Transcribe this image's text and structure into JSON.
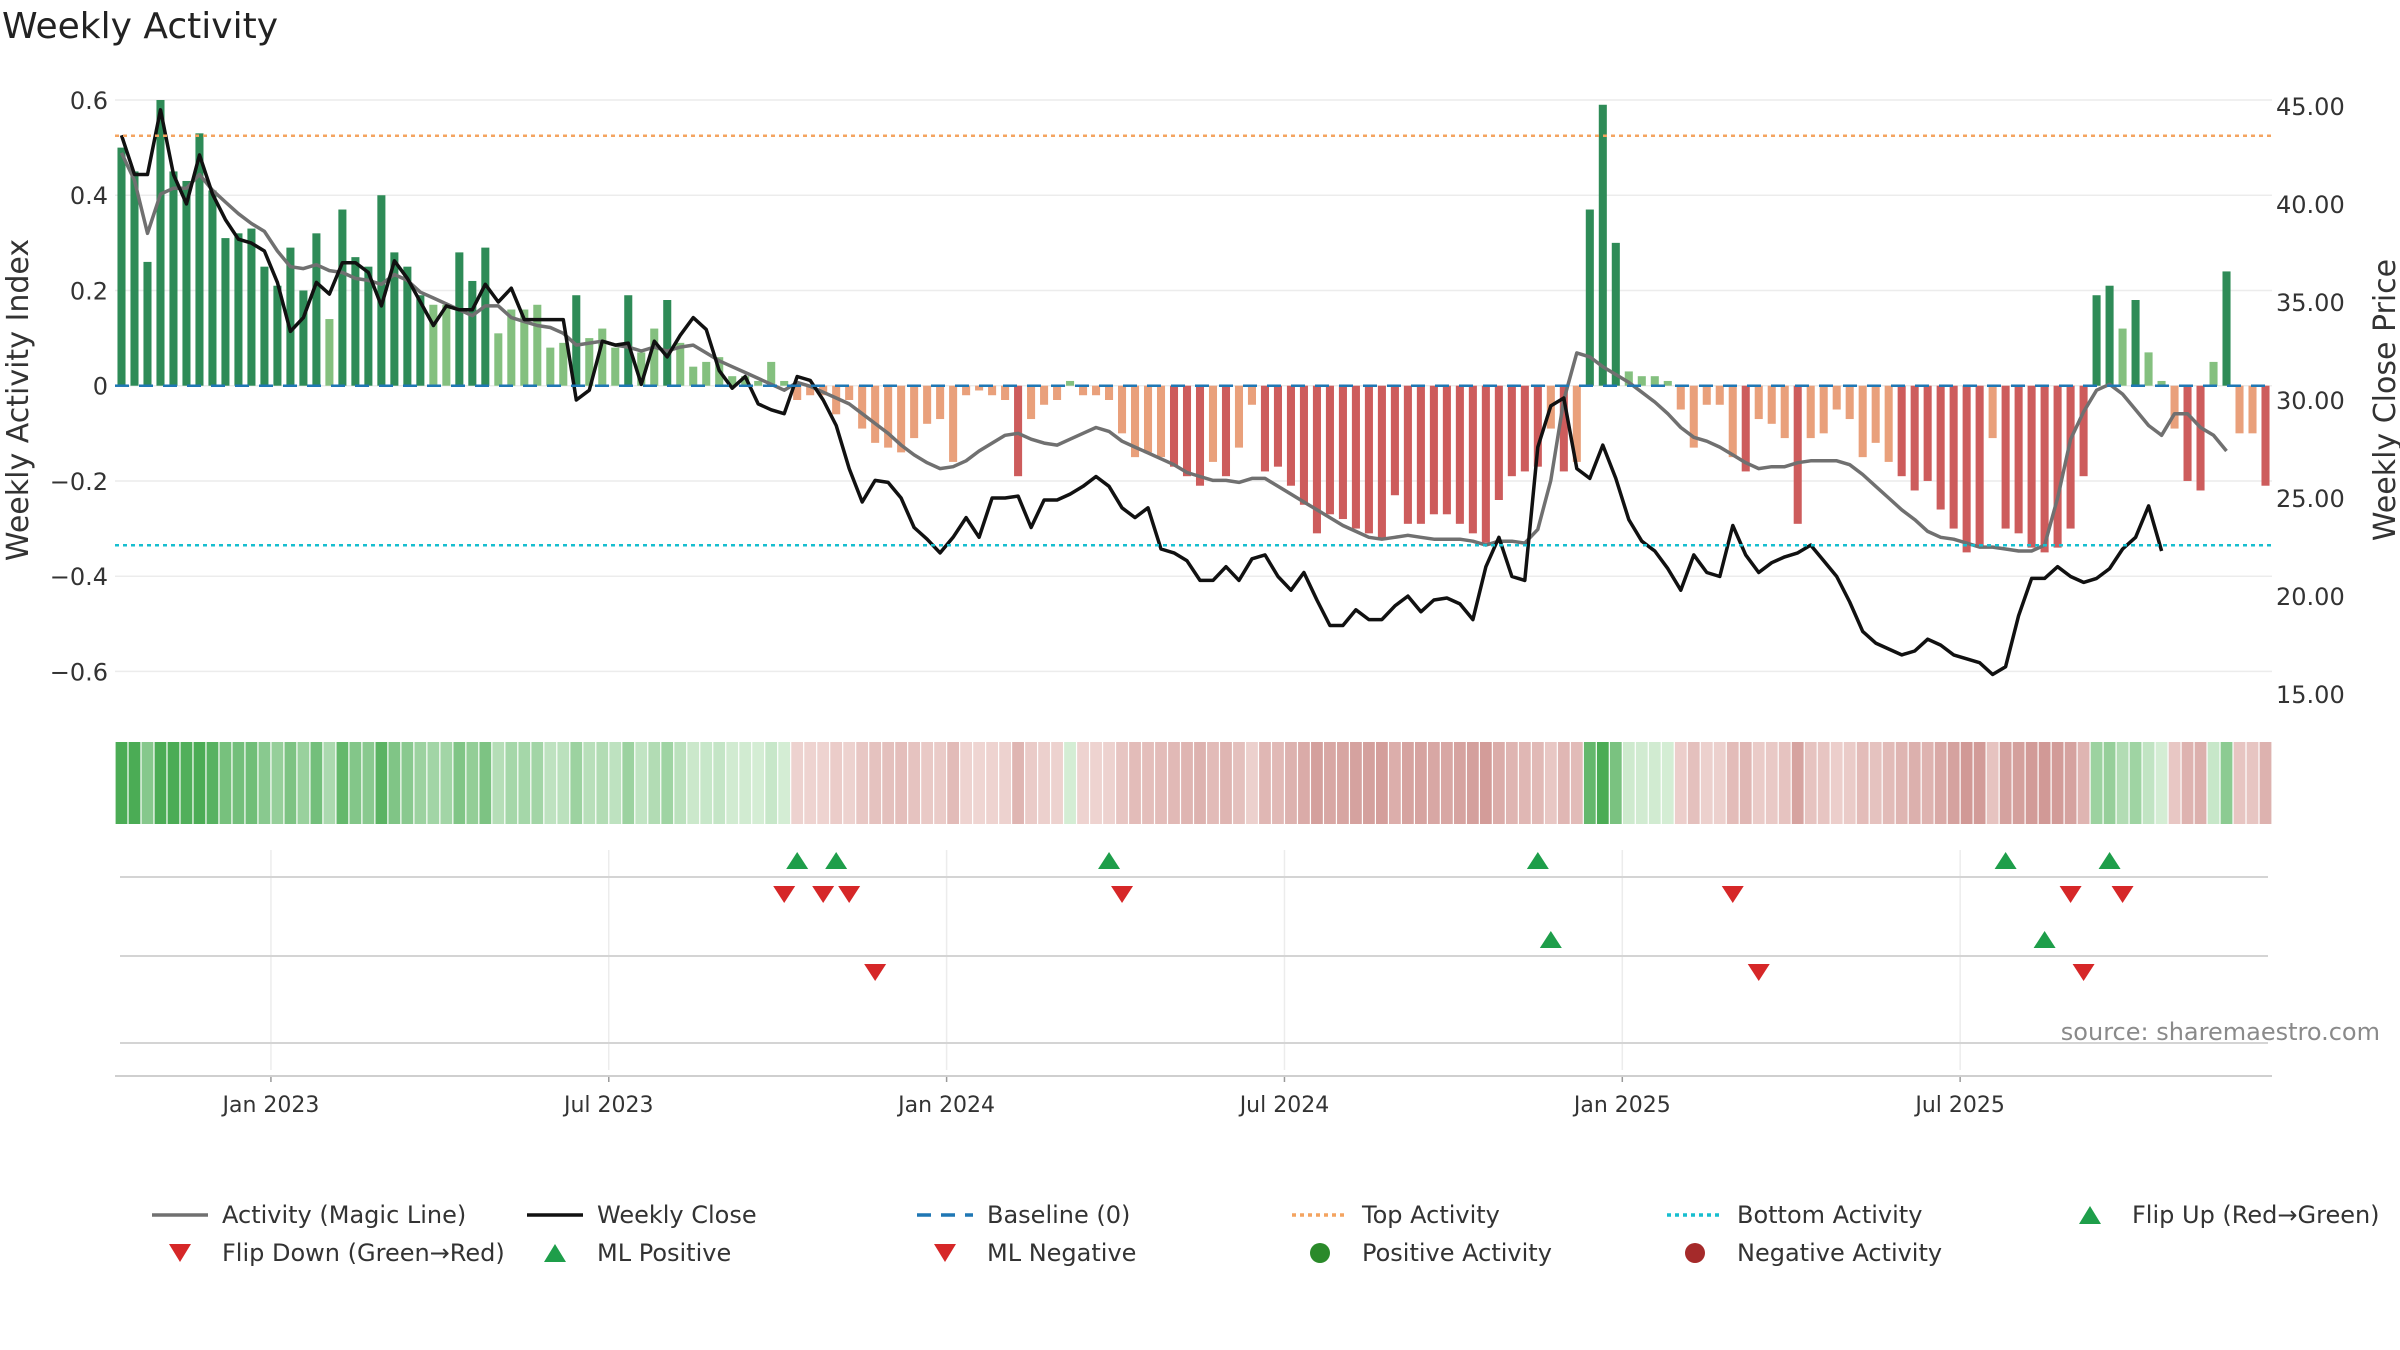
{
  "title": "Weekly Activity",
  "source": "source: sharemaestro.com",
  "colors": {
    "strong_green": "#2e8b57",
    "light_green": "#84c07f",
    "strong_red": "#cd5c5c",
    "light_red": "#e9a07b",
    "magic_line": "#707070",
    "close_line": "#111111",
    "baseline": "#1f77b4",
    "top_line": "#f4a460",
    "bottom_line": "#17becf",
    "flip_up": "#1e9e4a",
    "flip_down": "#d62728"
  },
  "chart_data": {
    "type": "bar",
    "left_axis": {
      "label": "Weekly Activity Index",
      "min": -0.66,
      "max": 0.6,
      "ticks": [
        0.6,
        0.4,
        0.2,
        0,
        -0.2,
        -0.4,
        -0.6
      ],
      "tick_labels": [
        "0.6",
        "0.4",
        "0.2",
        "0",
        "−0.2",
        "−0.4",
        "−0.6"
      ]
    },
    "right_axis": {
      "label": "Weekly Close Price",
      "min": 14.7,
      "max": 45.3,
      "ticks": [
        45,
        40,
        35,
        30,
        25,
        20,
        15
      ],
      "tick_labels": [
        "45.00",
        "40.00",
        "35.00",
        "30.00",
        "25.00",
        "20.00",
        "15.00"
      ]
    },
    "x_labels": [
      "Jan 2023",
      "Jul 2023",
      "Jan 2024",
      "Jul 2024",
      "Jan 2025",
      "Jul 2025"
    ],
    "x_label_weeks": [
      12,
      38,
      64,
      90,
      116,
      142
    ],
    "top_activity": 0.525,
    "bottom_activity": -0.335,
    "activity": [
      0.5,
      0.45,
      0.26,
      0.6,
      0.45,
      0.43,
      0.53,
      0.41,
      0.31,
      0.32,
      0.33,
      0.25,
      0.21,
      0.29,
      0.2,
      0.32,
      0.14,
      0.37,
      0.27,
      0.25,
      0.4,
      0.28,
      0.25,
      0.19,
      0.17,
      0.17,
      0.28,
      0.22,
      0.29,
      0.11,
      0.16,
      0.16,
      0.17,
      0.08,
      0.09,
      0.19,
      0.1,
      0.12,
      0.08,
      0.19,
      0.07,
      0.12,
      0.18,
      0.09,
      0.04,
      0.05,
      0.06,
      0.02,
      0.02,
      0.01,
      0.05,
      0.01,
      -0.03,
      -0.02,
      -0.02,
      -0.06,
      -0.03,
      -0.09,
      -0.12,
      -0.13,
      -0.14,
      -0.11,
      -0.08,
      -0.07,
      -0.16,
      -0.02,
      -0.01,
      -0.02,
      -0.03,
      -0.19,
      -0.07,
      -0.04,
      -0.03,
      0.01,
      -0.02,
      -0.02,
      -0.03,
      -0.1,
      -0.15,
      -0.14,
      -0.15,
      -0.17,
      -0.19,
      -0.21,
      -0.16,
      -0.19,
      -0.13,
      -0.04,
      -0.18,
      -0.17,
      -0.21,
      -0.25,
      -0.31,
      -0.27,
      -0.28,
      -0.3,
      -0.31,
      -0.32,
      -0.23,
      -0.29,
      -0.29,
      -0.27,
      -0.27,
      -0.29,
      -0.31,
      -0.33,
      -0.24,
      -0.19,
      -0.18,
      -0.17,
      -0.09,
      -0.18,
      -0.16,
      0.37,
      0.59,
      0.3,
      0.03,
      0.02,
      0.02,
      0.01,
      -0.05,
      -0.13,
      -0.04,
      -0.04,
      -0.15,
      -0.18,
      -0.07,
      -0.08,
      -0.11,
      -0.29,
      -0.11,
      -0.1,
      -0.05,
      -0.07,
      -0.15,
      -0.12,
      -0.16,
      -0.19,
      -0.22,
      -0.2,
      -0.26,
      -0.3,
      -0.35,
      -0.34,
      -0.11,
      -0.3,
      -0.31,
      -0.34,
      -0.35,
      -0.34,
      -0.3,
      -0.19,
      0.19,
      0.21,
      0.12,
      0.18,
      0.07,
      0.01,
      -0.09,
      -0.2,
      -0.22,
      0.05,
      0.24,
      -0.1,
      -0.1,
      -0.21
    ],
    "close": [
      43.5,
      41.5,
      41.5,
      44.8,
      41.5,
      40,
      42.5,
      40.5,
      39.2,
      38.2,
      38,
      37.6,
      36,
      33.5,
      34.2,
      36,
      35.4,
      37,
      37,
      36.5,
      34.8,
      37.1,
      36.2,
      35,
      33.8,
      34.8,
      34.6,
      34.6,
      35.9,
      35,
      35.7,
      34.1,
      34.1,
      34.1,
      34.1,
      30,
      30.5,
      33,
      32.8,
      32.9,
      30.8,
      33,
      32.2,
      33.3,
      34.2,
      33.6,
      31.5,
      30.6,
      31.2,
      29.8,
      29.5,
      29.3,
      31.2,
      31,
      30,
      28.7,
      26.5,
      24.8,
      25.9,
      25.8,
      25,
      23.5,
      22.9,
      22.2,
      23,
      24,
      23,
      25,
      25,
      25.1,
      23.5,
      24.9,
      24.9,
      25.2,
      25.6,
      26.1,
      25.6,
      24.5,
      24,
      24.5,
      22.4,
      22.2,
      21.8,
      20.8,
      20.8,
      21.5,
      20.8,
      21.9,
      22.1,
      21,
      20.3,
      21.2,
      19.8,
      18.5,
      18.5,
      19.3,
      18.8,
      18.8,
      19.5,
      20,
      19.2,
      19.8,
      19.9,
      19.6,
      18.8,
      21.5,
      23,
      21,
      20.8,
      27.6,
      29.7,
      30.1,
      26.5,
      26,
      27.7,
      26,
      23.9,
      22.8,
      22.3,
      21.4,
      20.3,
      22.1,
      21.2,
      21,
      23.6,
      22.1,
      21.2,
      21.7,
      22,
      22.2,
      22.6,
      21.8,
      21,
      19.7,
      18.2,
      17.6,
      17.3,
      17,
      17.2,
      17.8,
      17.5,
      17,
      16.8,
      16.6,
      16,
      16.4,
      19,
      20.9,
      20.9,
      21.5,
      21,
      20.7,
      20.9,
      21.4,
      22.4,
      23,
      24.6,
      22.3
    ],
    "magic": [
      42.6,
      41.2,
      38.5,
      40.5,
      40.8,
      40.8,
      41.5,
      40.7,
      40.1,
      39.5,
      39,
      38.6,
      37.6,
      36.8,
      36.7,
      36.9,
      36.6,
      36.5,
      36.2,
      36.1,
      35.9,
      36.4,
      36.1,
      35.5,
      35.2,
      34.9,
      34.6,
      34.3,
      34.8,
      34.8,
      34.2,
      34,
      33.8,
      33.7,
      33.4,
      32.8,
      32.9,
      33,
      32.8,
      32.7,
      32.5,
      32.7,
      32.5,
      32.7,
      32.8,
      32.4,
      32,
      31.7,
      31.4,
      31.1,
      30.8,
      30.5,
      30.9,
      30.7,
      30.4,
      30.1,
      29.8,
      29.3,
      28.8,
      28.3,
      27.7,
      27.2,
      26.8,
      26.5,
      26.6,
      26.9,
      27.4,
      27.8,
      28.2,
      28.3,
      28,
      27.8,
      27.7,
      28,
      28.3,
      28.6,
      28.4,
      27.9,
      27.6,
      27.3,
      27,
      26.7,
      26.3,
      26.1,
      25.9,
      25.9,
      25.8,
      26,
      26,
      25.6,
      25.2,
      24.8,
      24.4,
      24,
      23.6,
      23.3,
      23,
      22.9,
      23,
      23.1,
      23,
      22.9,
      22.9,
      22.9,
      22.8,
      22.6,
      22.8,
      22.8,
      22.7,
      23.4,
      25.9,
      30,
      32.4,
      32.2,
      31.7,
      31.3,
      30.9,
      30.4,
      29.9,
      29.3,
      28.6,
      28.1,
      27.9,
      27.6,
      27.2,
      26.8,
      26.5,
      26.6,
      26.6,
      26.8,
      26.9,
      26.9,
      26.9,
      26.7,
      26.2,
      25.6,
      25,
      24.4,
      23.9,
      23.3,
      23,
      22.9,
      22.7,
      22.5,
      22.5,
      22.4,
      22.3,
      22.3,
      22.6,
      25,
      28,
      29.4,
      30.5,
      30.8,
      30.3,
      29.5,
      28.7,
      28.2,
      29.3,
      29.3,
      28.6,
      28.2,
      27.4
    ],
    "heatmap_type": "heatmap",
    "flip_up_weeks": [
      52,
      55,
      76,
      109,
      145,
      153
    ],
    "flip_down_weeks": [
      51,
      54,
      56,
      77,
      124,
      150,
      154
    ],
    "ml_positive_weeks": [
      110,
      148
    ],
    "ml_negative_weeks": [
      58,
      126,
      151
    ]
  },
  "legend": [
    {
      "label": "Activity (Magic Line)",
      "kind": "line",
      "color": "#707070",
      "dash": ""
    },
    {
      "label": "Weekly Close",
      "kind": "line",
      "color": "#111111",
      "dash": ""
    },
    {
      "label": "Baseline (0)",
      "kind": "line",
      "color": "#1f77b4",
      "dash": "14,10"
    },
    {
      "label": "Top Activity",
      "kind": "line",
      "color": "#f4a460",
      "dash": "4,4"
    },
    {
      "label": "Bottom Activity",
      "kind": "line",
      "color": "#17becf",
      "dash": "4,4"
    },
    {
      "label": "Flip Up (Red→Green)",
      "kind": "tri-up",
      "color": "#1e9e4a"
    },
    {
      "label": "Flip Down (Green→Red)",
      "kind": "tri-down",
      "color": "#d62728"
    },
    {
      "label": "ML Positive",
      "kind": "tri-up",
      "color": "#1e9e4a"
    },
    {
      "label": "ML Negative",
      "kind": "tri-down",
      "color": "#d62728"
    },
    {
      "label": "Positive Activity",
      "kind": "dot",
      "color": "#2a8a2a"
    },
    {
      "label": "Negative Activity",
      "kind": "dot",
      "color": "#a52a2a"
    }
  ]
}
